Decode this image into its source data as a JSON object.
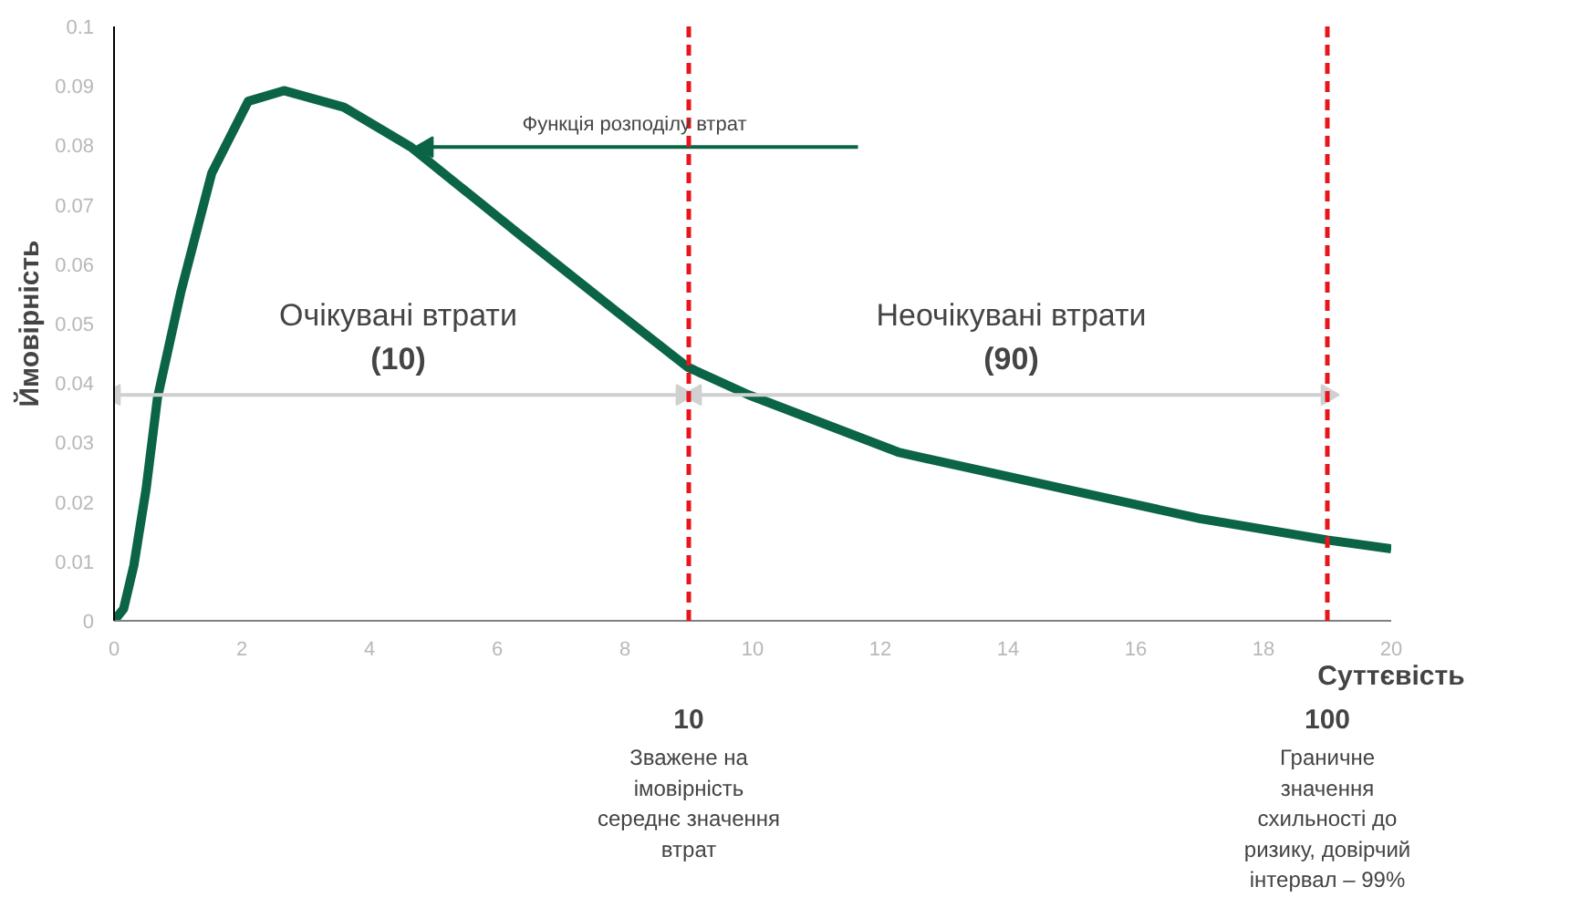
{
  "chart_data": {
    "type": "line",
    "xlabel": "Суттєвість",
    "ylabel": "Ймовірність",
    "x": [
      0,
      0.15,
      0.31,
      0.5,
      0.68,
      1.05,
      1.53,
      2.1,
      2.66,
      3.6,
      4.65,
      6.43,
      7.85,
      8.98,
      9.94,
      12.3,
      15,
      17,
      19,
      20
    ],
    "series": [
      {
        "color": "#0a6445",
        "values": [
          0,
          0.002,
          0.0093,
          0.022,
          0.0375,
          0.0555,
          0.0753,
          0.0874,
          0.0892,
          0.0864,
          0.0797,
          0.0643,
          0.0522,
          0.0427,
          0.038,
          0.0283,
          0.0219,
          0.0172,
          0.0136,
          0.0121
        ]
      },
      {
        "color": "#d0d0d0",
        "x": [
          0,
          8.9
        ],
        "values": [
          0.038,
          0.038
        ],
        "marker": "triangle"
      },
      {
        "color": "#d0d0d0",
        "x": [
          9.1,
          19
        ],
        "values": [
          0.038,
          0.038
        ],
        "marker": "triangle"
      }
    ],
    "xlim": [
      0,
      20
    ],
    "ylim": [
      0,
      0.1
    ],
    "xticks": [
      0,
      2,
      4,
      6,
      8,
      10,
      12,
      14,
      16,
      18,
      20
    ],
    "yticks": [
      0,
      0.01,
      0.02,
      0.03,
      0.04,
      0.05,
      0.06,
      0.07,
      0.08,
      0.09,
      0.1
    ],
    "grid": false,
    "marker": "none",
    "line_style": "solid",
    "ref_lines": [
      {
        "axis": "x",
        "value": 9,
        "color": "#e8151b",
        "line_style": "dashed"
      },
      {
        "axis": "x",
        "value": 19,
        "color": "#e8151b",
        "line_style": "dashed"
      }
    ],
    "annotations": [
      "Функція розподілу втрат",
      "Очікувані втрати\n(10)",
      "Неочікувані втрати\n(90)",
      "10\nЗважене на\nімовірність\nсереднє значення\nвтрат",
      "100\nГраничне\nзначення\nсхильності до\nризику, довірчий\nінтервал – 99%"
    ]
  }
}
